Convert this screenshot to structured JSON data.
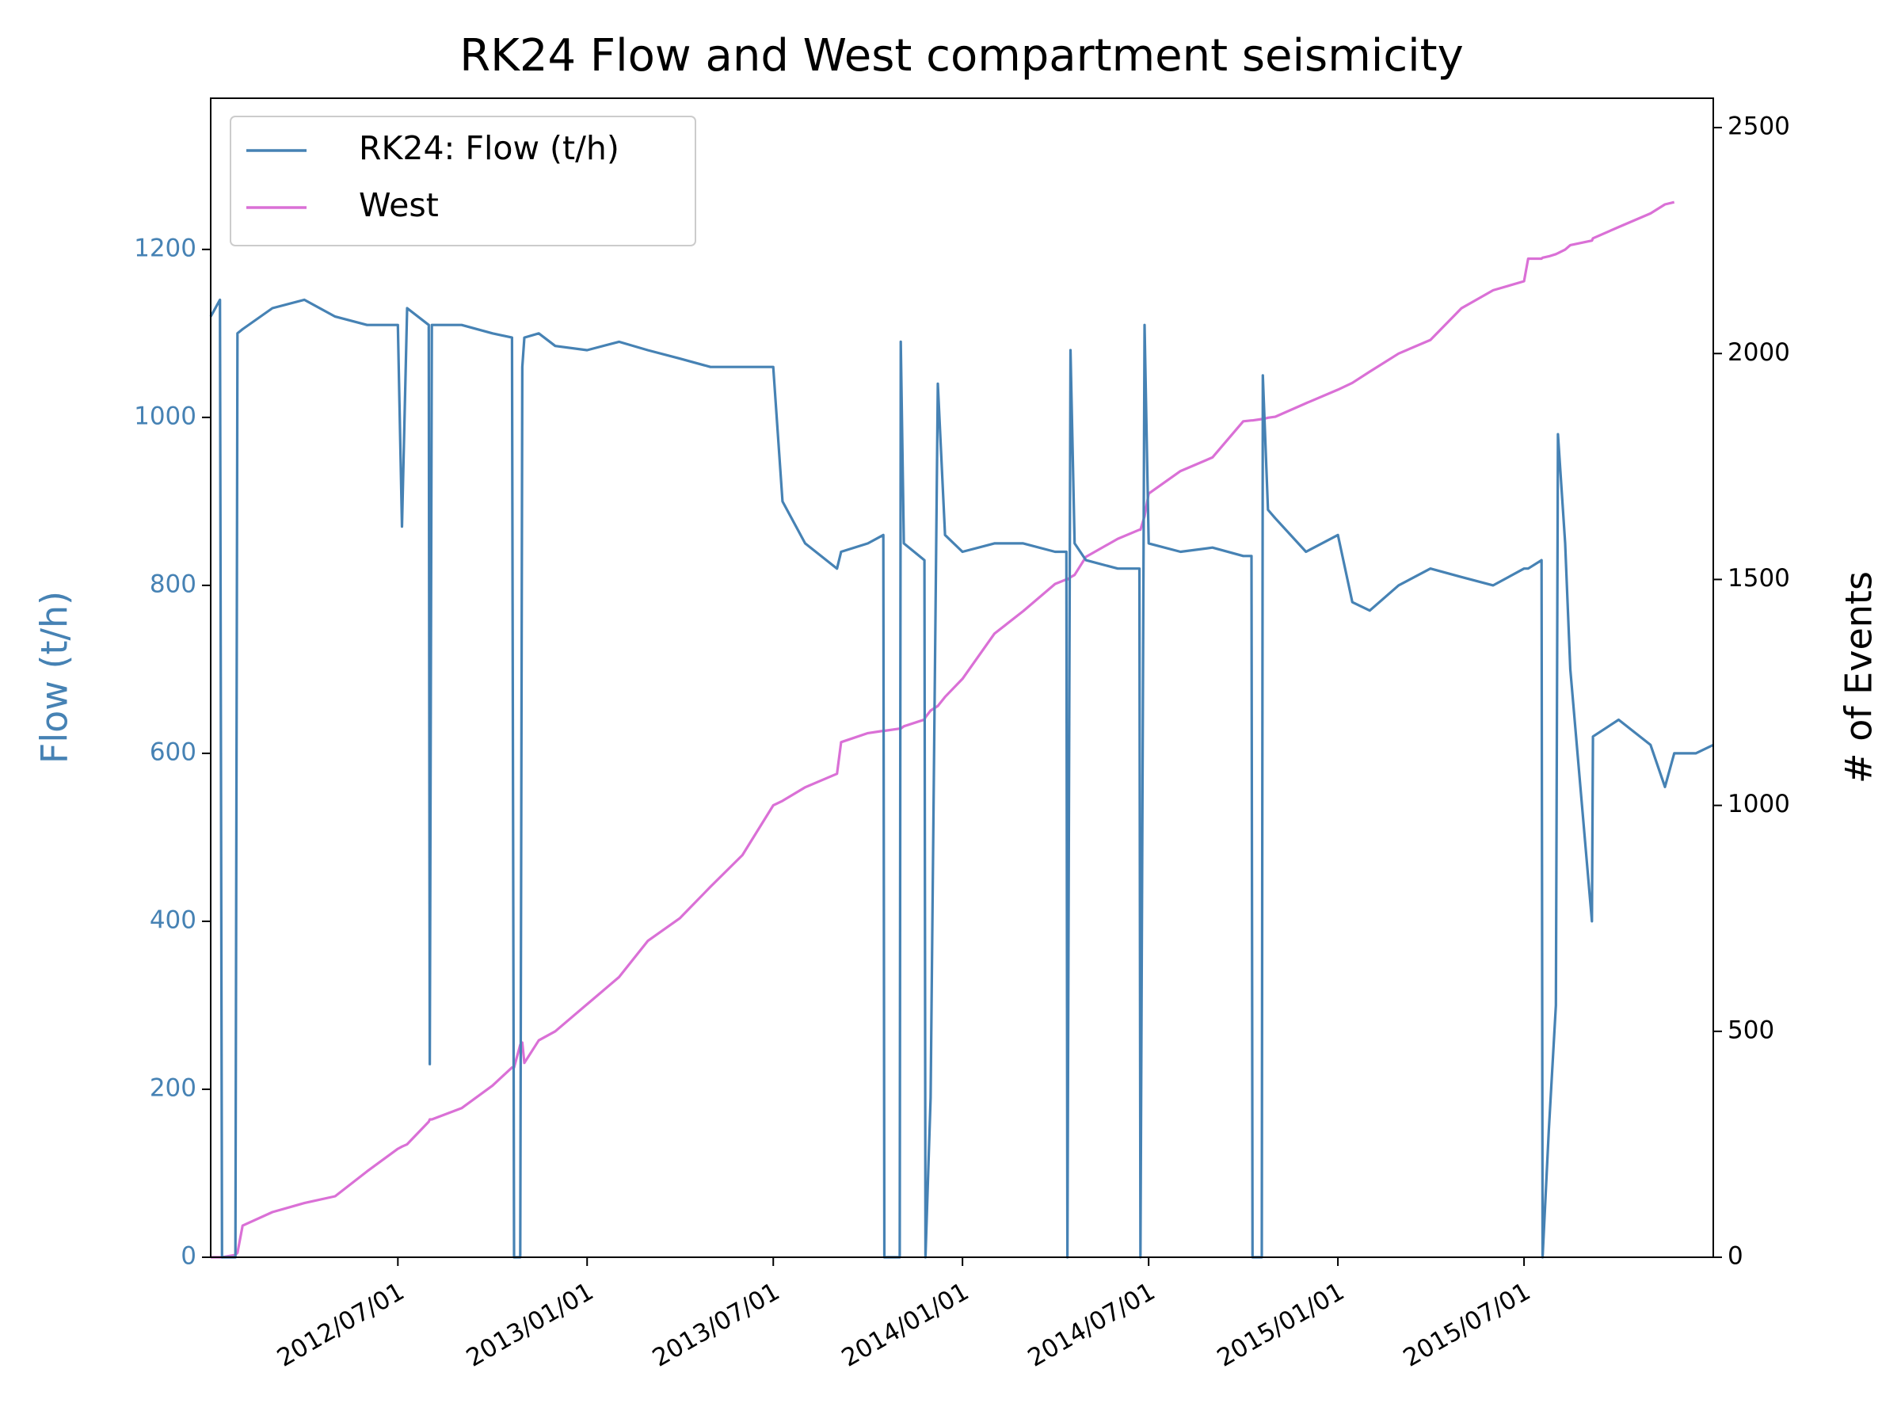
{
  "chart_data": {
    "type": "line",
    "title": "RK24 Flow and West compartment seismicity",
    "y_label": "Flow (t/h)",
    "y2_label": "# of Events",
    "x": [
      "2012-01-01",
      "2012-01-10",
      "2012-01-12",
      "2012-01-25",
      "2012-01-27",
      "2012-02-01",
      "2012-03-01",
      "2012-04-01",
      "2012-05-01",
      "2012-06-01",
      "2012-07-01",
      "2012-07-05",
      "2012-07-10",
      "2012-07-31",
      "2012-08-01",
      "2012-08-03",
      "2012-09-01",
      "2012-10-01",
      "2012-10-20",
      "2012-10-22",
      "2012-10-28",
      "2012-10-30",
      "2012-11-01",
      "2012-11-15",
      "2012-12-01",
      "2013-01-01",
      "2013-02-01",
      "2013-03-01",
      "2013-04-01",
      "2013-05-01",
      "2013-06-01",
      "2013-07-01",
      "2013-07-10",
      "2013-08-01",
      "2013-09-01",
      "2013-09-05",
      "2013-10-01",
      "2013-10-16",
      "2013-10-17",
      "2013-11-01",
      "2013-11-02",
      "2013-11-05",
      "2013-11-25",
      "2013-11-26",
      "2013-12-01",
      "2013-12-08",
      "2013-12-15",
      "2014-01-01",
      "2014-02-01",
      "2014-03-01",
      "2014-04-01",
      "2014-04-12",
      "2014-04-13",
      "2014-04-16",
      "2014-04-20",
      "2014-05-01",
      "2014-06-01",
      "2014-06-22",
      "2014-06-23",
      "2014-06-27",
      "2014-07-01",
      "2014-08-01",
      "2014-09-01",
      "2014-10-01",
      "2014-10-09",
      "2014-10-10",
      "2014-10-19",
      "2014-10-20",
      "2014-10-25",
      "2014-11-01",
      "2014-12-01",
      "2015-01-01",
      "2015-01-15",
      "2015-02-01",
      "2015-03-01",
      "2015-04-01",
      "2015-05-01",
      "2015-06-01",
      "2015-07-01",
      "2015-07-05",
      "2015-07-18",
      "2015-07-19",
      "2015-07-25",
      "2015-08-01",
      "2015-08-03",
      "2015-08-10",
      "2015-08-15",
      "2015-09-05",
      "2015-09-06",
      "2015-10-01",
      "2015-11-01",
      "2015-11-15",
      "2015-11-24",
      "2015-12-15",
      "2016-01-01"
    ],
    "series": [
      {
        "name": "RK24: Flow (t/h)",
        "color": "#4682b4",
        "axis": "y",
        "values": [
          1120,
          1140,
          0,
          0,
          1100,
          1105,
          1130,
          1140,
          1120,
          1110,
          1110,
          870,
          1130,
          1110,
          230,
          1110,
          1110,
          1100,
          1095,
          0,
          0,
          1060,
          1095,
          1100,
          1085,
          1080,
          1090,
          1080,
          1070,
          1060,
          1060,
          1060,
          900,
          850,
          820,
          840,
          850,
          860,
          0,
          0,
          1090,
          850,
          830,
          0,
          190,
          1040,
          860,
          840,
          850,
          850,
          840,
          840,
          0,
          1080,
          850,
          830,
          820,
          820,
          0,
          1110,
          850,
          840,
          845,
          835,
          835,
          0,
          0,
          1050,
          890,
          880,
          840,
          860,
          780,
          770,
          800,
          820,
          810,
          800,
          820,
          820,
          830,
          0,
          150,
          300,
          980,
          850,
          700,
          400,
          620,
          640,
          610,
          560,
          600,
          600,
          610
        ]
      },
      {
        "name": "West",
        "color": "#da70d6",
        "axis": "y2",
        "values": [
          0,
          0,
          0,
          5,
          10,
          70,
          100,
          120,
          135,
          190,
          240,
          245,
          250,
          300,
          305,
          305,
          330,
          380,
          420,
          420,
          470,
          475,
          430,
          480,
          500,
          560,
          620,
          700,
          750,
          820,
          890,
          1000,
          1010,
          1040,
          1070,
          1140,
          1160,
          1165,
          1165,
          1170,
          1170,
          1175,
          1190,
          1195,
          1210,
          1220,
          1240,
          1280,
          1380,
          1430,
          1490,
          1500,
          1500,
          1505,
          1510,
          1550,
          1590,
          1610,
          1610,
          1640,
          1690,
          1740,
          1770,
          1850,
          1852,
          1852,
          1855,
          1855,
          1858,
          1860,
          1890,
          1920,
          1935,
          1960,
          2000,
          2030,
          2100,
          2140,
          2160,
          2210,
          2210,
          2212,
          2215,
          2220,
          2222,
          2230,
          2240,
          2250,
          2255,
          2280,
          2310,
          2330,
          2335,
          null,
          null
        ]
      }
    ],
    "xlim": [
      "2012-01-01",
      "2016-01-01"
    ],
    "xticks": [
      {
        "value": "2012-07-01",
        "label": "2012/07/01"
      },
      {
        "value": "2013-01-01",
        "label": "2013/01/01"
      },
      {
        "value": "2013-07-01",
        "label": "2013/07/01"
      },
      {
        "value": "2014-01-01",
        "label": "2014/01/01"
      },
      {
        "value": "2014-07-01",
        "label": "2014/07/01"
      },
      {
        "value": "2015-01-01",
        "label": "2015/01/01"
      },
      {
        "value": "2015-07-01",
        "label": "2015/07/01"
      }
    ],
    "ylim": [
      0,
      1380
    ],
    "yticks": [
      0,
      200,
      400,
      600,
      800,
      1000,
      1200
    ],
    "y2lim": [
      0,
      2565
    ],
    "y2ticks": [
      0,
      500,
      1000,
      1500,
      2000,
      2500
    ],
    "legend": "upper left"
  }
}
